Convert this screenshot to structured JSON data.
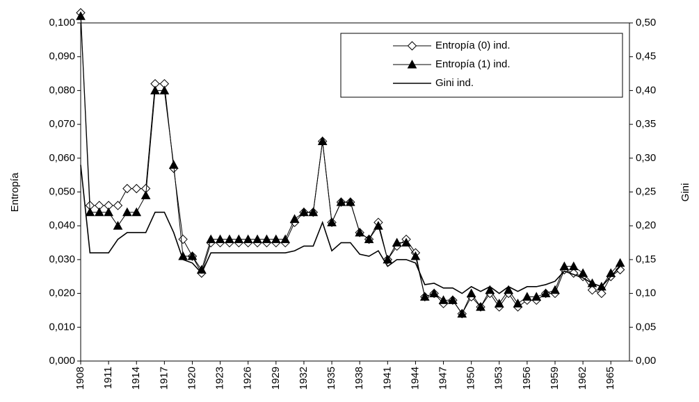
{
  "chart_data": {
    "type": "line",
    "y_label": "Entropía",
    "y2_label": "Gini",
    "x": [
      1908,
      1909,
      1910,
      1911,
      1912,
      1913,
      1914,
      1915,
      1916,
      1917,
      1918,
      1919,
      1920,
      1921,
      1922,
      1923,
      1924,
      1925,
      1926,
      1927,
      1928,
      1929,
      1930,
      1931,
      1932,
      1933,
      1934,
      1935,
      1936,
      1937,
      1938,
      1939,
      1940,
      1941,
      1942,
      1943,
      1944,
      1945,
      1946,
      1947,
      1948,
      1949,
      1950,
      1951,
      1952,
      1953,
      1954,
      1955,
      1956,
      1957,
      1958,
      1959,
      1960,
      1961,
      1962,
      1963,
      1964,
      1965,
      1966
    ],
    "xlim": [
      1908,
      1967
    ],
    "xticks": [
      1908,
      1911,
      1914,
      1917,
      1920,
      1923,
      1926,
      1929,
      1932,
      1935,
      1938,
      1941,
      1944,
      1947,
      1950,
      1953,
      1956,
      1959,
      1962,
      1965
    ],
    "ylim": [
      0,
      0.1
    ],
    "yticks": [
      {
        "value": 0,
        "label": "0,000"
      },
      {
        "value": 0.01,
        "label": "0,010"
      },
      {
        "value": 0.02,
        "label": "0,020"
      },
      {
        "value": 0.03,
        "label": "0,030"
      },
      {
        "value": 0.04,
        "label": "0,040"
      },
      {
        "value": 0.05,
        "label": "0,050"
      },
      {
        "value": 0.06,
        "label": "0,060"
      },
      {
        "value": 0.07,
        "label": "0,070"
      },
      {
        "value": 0.08,
        "label": "0,080"
      },
      {
        "value": 0.09,
        "label": "0,090"
      },
      {
        "value": 0.1,
        "label": "0,100"
      }
    ],
    "y2lim": [
      0,
      0.5
    ],
    "y2ticks": [
      {
        "value": 0,
        "label": "0,00"
      },
      {
        "value": 0.05,
        "label": "0,05"
      },
      {
        "value": 0.1,
        "label": "0,10"
      },
      {
        "value": 0.15,
        "label": "0,15"
      },
      {
        "value": 0.2,
        "label": "0,20"
      },
      {
        "value": 0.25,
        "label": "0,25"
      },
      {
        "value": 0.3,
        "label": "0,30"
      },
      {
        "value": 0.35,
        "label": "0,35"
      },
      {
        "value": 0.4,
        "label": "0,40"
      },
      {
        "value": 0.45,
        "label": "0,45"
      },
      {
        "value": 0.5,
        "label": "0,50"
      }
    ],
    "grid": false,
    "legend": "upper right",
    "series": [
      {
        "name": "Entropía (0) ind.",
        "color": "#000000",
        "marker": "diamond-open",
        "values": [
          0.103,
          0.046,
          0.046,
          0.046,
          0.046,
          0.051,
          0.051,
          0.051,
          0.082,
          0.082,
          0.057,
          0.036,
          0.031,
          0.026,
          0.035,
          0.035,
          0.035,
          0.035,
          0.035,
          0.035,
          0.035,
          0.035,
          0.035,
          0.041,
          0.044,
          0.044,
          0.065,
          0.041,
          0.047,
          0.047,
          0.038,
          0.036,
          0.041,
          0.03,
          0.034,
          0.036,
          0.032,
          0.019,
          0.02,
          0.017,
          0.018,
          0.014,
          0.019,
          0.016,
          0.02,
          0.016,
          0.02,
          0.016,
          0.018,
          0.018,
          0.02,
          0.02,
          0.027,
          0.026,
          0.025,
          0.021,
          0.02,
          0.025,
          0.027
        ]
      },
      {
        "name": "Entropía (1) ind.",
        "color": "#000000",
        "marker": "triangle-filled",
        "values": [
          0.102,
          0.044,
          0.044,
          0.044,
          0.04,
          0.044,
          0.044,
          0.049,
          0.08,
          0.08,
          0.058,
          0.031,
          0.031,
          0.027,
          0.036,
          0.036,
          0.036,
          0.036,
          0.036,
          0.036,
          0.036,
          0.036,
          0.036,
          0.042,
          0.044,
          0.044,
          0.065,
          0.041,
          0.047,
          0.047,
          0.038,
          0.036,
          0.04,
          0.03,
          0.035,
          0.035,
          0.031,
          0.019,
          0.02,
          0.018,
          0.018,
          0.014,
          0.02,
          0.016,
          0.021,
          0.017,
          0.021,
          0.017,
          0.019,
          0.019,
          0.02,
          0.021,
          0.028,
          0.028,
          0.026,
          0.023,
          0.022,
          0.026,
          0.029
        ]
      },
      {
        "name": "Gini ind.",
        "color": "#000000",
        "marker": "none",
        "axis": "y2",
        "values": [
          0.29,
          0.16,
          0.16,
          0.16,
          0.18,
          0.19,
          0.19,
          0.19,
          0.22,
          0.22,
          0.19,
          0.15,
          0.145,
          0.13,
          0.16,
          0.16,
          0.16,
          0.16,
          0.16,
          0.16,
          0.16,
          0.16,
          0.16,
          0.163,
          0.17,
          0.17,
          0.205,
          0.163,
          0.175,
          0.175,
          0.158,
          0.155,
          0.163,
          0.14,
          0.15,
          0.15,
          0.145,
          0.113,
          0.115,
          0.108,
          0.108,
          0.1,
          0.11,
          0.103,
          0.11,
          0.1,
          0.11,
          0.103,
          0.11,
          0.11,
          0.113,
          0.118,
          0.133,
          0.128,
          0.123,
          0.115,
          0.11,
          0.125,
          0.14
        ]
      }
    ]
  }
}
